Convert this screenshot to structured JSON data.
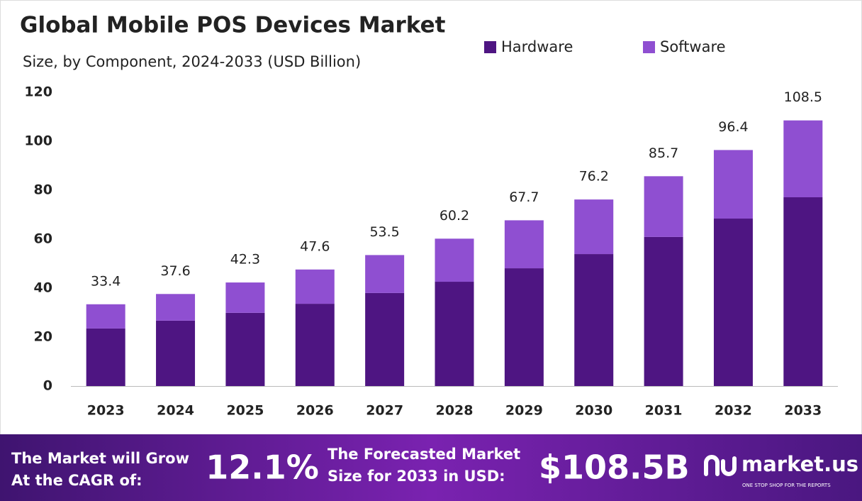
{
  "chart_data": {
    "type": "stacked-bar",
    "title": "Global Mobile POS Devices Market",
    "subtitle": "Size, by Component, 2024-2033 (USD Billion)",
    "categories": [
      "2023",
      "2024",
      "2025",
      "2026",
      "2027",
      "2028",
      "2029",
      "2030",
      "2031",
      "2032",
      "2033"
    ],
    "series": [
      {
        "name": "Hardware",
        "color": "#4e1582",
        "values": [
          23.5,
          26.7,
          29.9,
          33.6,
          38.0,
          42.6,
          48.1,
          53.9,
          60.9,
          68.4,
          77.1
        ]
      },
      {
        "name": "Software",
        "color": "#8f4fd1",
        "values": [
          9.9,
          10.9,
          12.4,
          14.0,
          15.5,
          17.6,
          19.6,
          22.3,
          24.8,
          28.0,
          31.4
        ]
      }
    ],
    "totals": [
      33.4,
      37.6,
      42.3,
      47.6,
      53.5,
      60.2,
      67.7,
      76.2,
      85.7,
      96.4,
      108.5
    ],
    "ylim": [
      0,
      120
    ],
    "yticks": [
      0,
      20,
      40,
      60,
      80,
      100,
      120
    ],
    "grid": false,
    "legend": "top-right"
  },
  "footer": {
    "cagr_text": [
      "The Market will Grow",
      "At the CAGR of:"
    ],
    "cagr_value": "12.1%",
    "forecast_text": [
      "The Forecasted Market",
      "Size for 2033 in USD:"
    ],
    "forecast_value": "$108.5B",
    "brand": "market.us",
    "tagline": "ONE STOP SHOP FOR THE REPORTS"
  }
}
